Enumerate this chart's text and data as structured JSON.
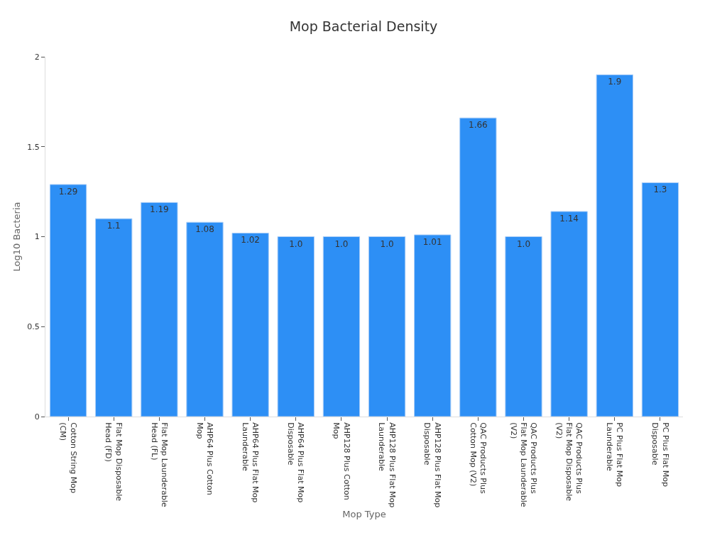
{
  "chart_data": {
    "type": "bar",
    "title": "Mop Bacterial Density",
    "xlabel": "Mop Type",
    "ylabel": "Log10 Bacteria",
    "categories": [
      "Cotton String Mop (CM)",
      "Flat Mop Disposable Head (FD)",
      "Flat Mop Launderable Head (FL)",
      "AHP64 Plus Cotton Mop",
      "AHP64 Plus Flat Mop Launderable",
      "AHP64 Plus Flat Mop Disposable",
      "AHP128 Plus Cotton Mop",
      "AHP128 Plus Flat Mop Launderable",
      "AHP128 Plus Flat Mop Disposable",
      "QAC Products Plus Cotton Mop (V2)",
      "QAC Products Plus Flat Mop Launderable (V2)",
      "QAC Products Plus Flat Mop Disposable (V2)",
      "PC Plus Flat Mop Launderable",
      "PC Plus Flat Mop Disposable"
    ],
    "values": [
      1.29,
      1.1,
      1.19,
      1.08,
      1.02,
      1.0,
      1.0,
      1.0,
      1.01,
      1.66,
      1.0,
      1.14,
      1.9,
      1.3
    ],
    "value_labels": [
      "1.29",
      "1.1",
      "1.19",
      "1.08",
      "1.02",
      "1.0",
      "1.0",
      "1.0",
      "1.01",
      "1.66",
      "1.0",
      "1.14",
      "1.9",
      "1.3"
    ],
    "color": "#2d8ff5",
    "ylim": [
      0,
      2
    ],
    "yticks": [
      0,
      0.5,
      1,
      1.5,
      2
    ]
  }
}
